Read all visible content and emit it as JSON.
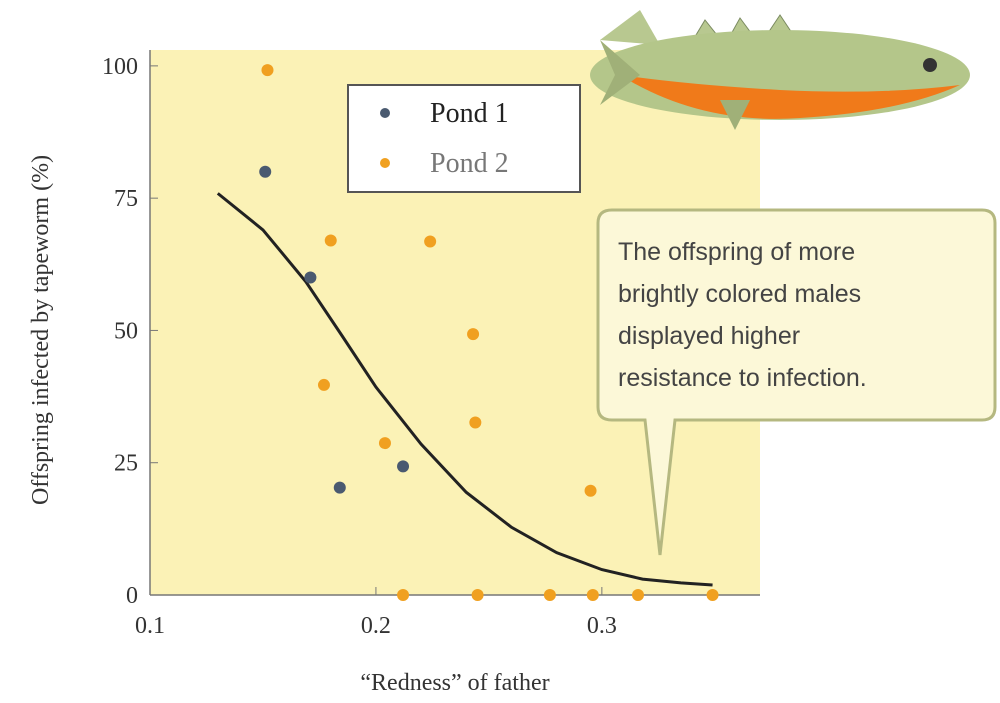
{
  "chart_data": {
    "type": "scatter",
    "x_label": "“Redness” of father",
    "y_label": "Offspring infected by tapeworm (%)",
    "xlim": [
      0.1,
      0.37
    ],
    "ylim": [
      0,
      103
    ],
    "xticks": [
      0.1,
      0.2,
      0.3
    ],
    "yticks": [
      0,
      25,
      50,
      75,
      100
    ],
    "grid": false,
    "legend": "upper-center",
    "series": [
      {
        "name": "Pond 1",
        "color": "#4a5a70",
        "x": [
          0.151,
          0.171,
          0.184,
          0.212
        ],
        "values": [
          80,
          60,
          20.3,
          24.3
        ]
      },
      {
        "name": "Pond 2",
        "color": "#f0a020",
        "x": [
          0.152,
          0.18,
          0.177,
          0.204,
          0.224,
          0.243,
          0.244,
          0.295,
          0.212,
          0.245,
          0.277,
          0.296,
          0.316,
          0.349
        ],
        "values": [
          99.2,
          67,
          39.7,
          28.7,
          66.8,
          49.3,
          32.6,
          19.7,
          0,
          0,
          0,
          0,
          0,
          0
        ]
      }
    ],
    "trend": {
      "color": "#222222",
      "x": [
        0.13,
        0.15,
        0.169,
        0.185,
        0.2,
        0.22,
        0.24,
        0.26,
        0.28,
        0.3,
        0.318,
        0.335,
        0.349
      ],
      "values": [
        75.9,
        69,
        59.2,
        49,
        39.3,
        28.5,
        19.4,
        12.8,
        8,
        4.8,
        3,
        2.3,
        1.9
      ]
    },
    "annotation": [
      "The offspring of more",
      "brightly colored males",
      "displayed higher",
      "resistance to infection."
    ]
  }
}
